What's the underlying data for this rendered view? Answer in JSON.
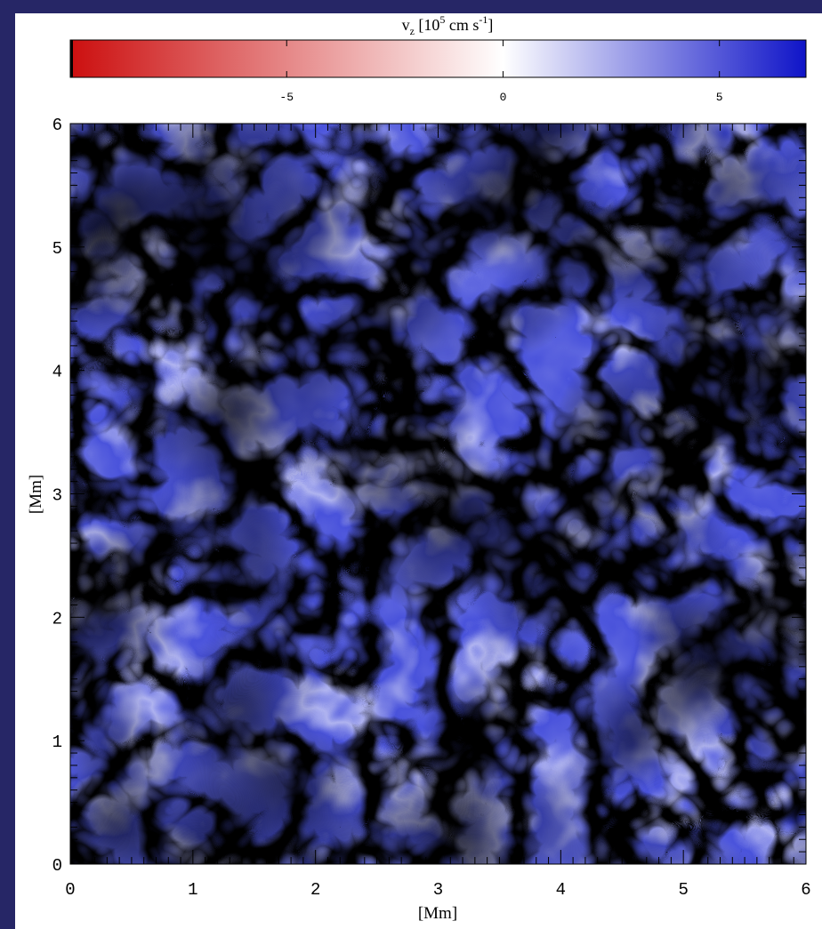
{
  "colors": {
    "frame": "#262666",
    "negative": "#cc0f0f",
    "zero": "#ffffff",
    "positive": "#0f14c8"
  },
  "colorbar": {
    "title_main": "v",
    "title_sub": "z",
    "title_unit_a": " [10",
    "title_exp": "5",
    "title_unit_b": " cm s",
    "title_exp2": "-1",
    "title_close": "]",
    "range": [
      -10,
      7
    ],
    "ticks": [
      {
        "value": -5,
        "label": "-5"
      },
      {
        "value": 0,
        "label": "0"
      },
      {
        "value": 5,
        "label": "5"
      }
    ]
  },
  "chart_data": {
    "type": "heatmap",
    "title": "",
    "xlabel": "[Mm]",
    "ylabel": "[Mm]",
    "xlim": [
      0,
      6
    ],
    "ylim": [
      0,
      6
    ],
    "x_ticks": [
      "0",
      "1",
      "2",
      "3",
      "4",
      "5",
      "6"
    ],
    "y_ticks": [
      "0",
      "1",
      "2",
      "3",
      "4",
      "5",
      "6"
    ],
    "colorbar_label": "vz [10^5 cm s^-1]",
    "colorbar_range": [
      -10,
      7
    ],
    "colorscale": "red (downflow, negative) – white (0) – blue (upflow, positive)"
  }
}
